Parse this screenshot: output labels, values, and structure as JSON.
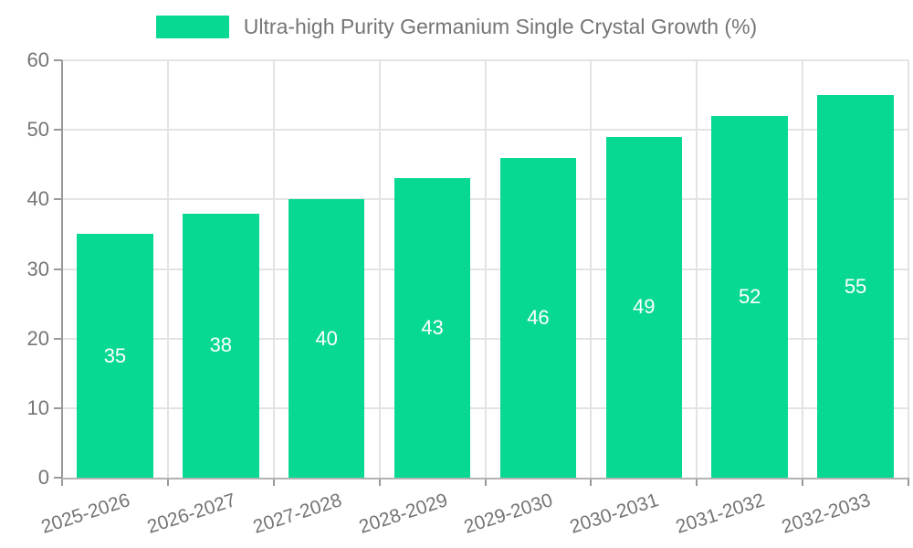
{
  "legend": {
    "label": "Ultra-high Purity Germanium Single Crystal Growth (%)"
  },
  "colors": {
    "bar": "#08d992",
    "grid": "#e3e3e3",
    "axis": "#999999",
    "tick_text": "#757575",
    "bar_label_text": "#ffffff",
    "background": "#ffffff"
  },
  "chart_data": {
    "type": "bar",
    "title": "Ultra-high Purity Germanium Single Crystal Growth (%)",
    "categories": [
      "2025-2026",
      "2026-2027",
      "2027-2028",
      "2028-2029",
      "2029-2030",
      "2030-2031",
      "2031-2032",
      "2032-2033"
    ],
    "values": [
      35,
      38,
      40,
      43,
      46,
      49,
      52,
      55
    ],
    "xlabel": "",
    "ylabel": "",
    "ylim": [
      0,
      60
    ],
    "ytick_interval": 10,
    "ytick_labels": [
      "0",
      "10",
      "20",
      "30",
      "40",
      "50",
      "60"
    ],
    "grid": true,
    "legend_position": "top",
    "bar_label_position": "inside-center",
    "x_label_rotation_deg": -18
  }
}
